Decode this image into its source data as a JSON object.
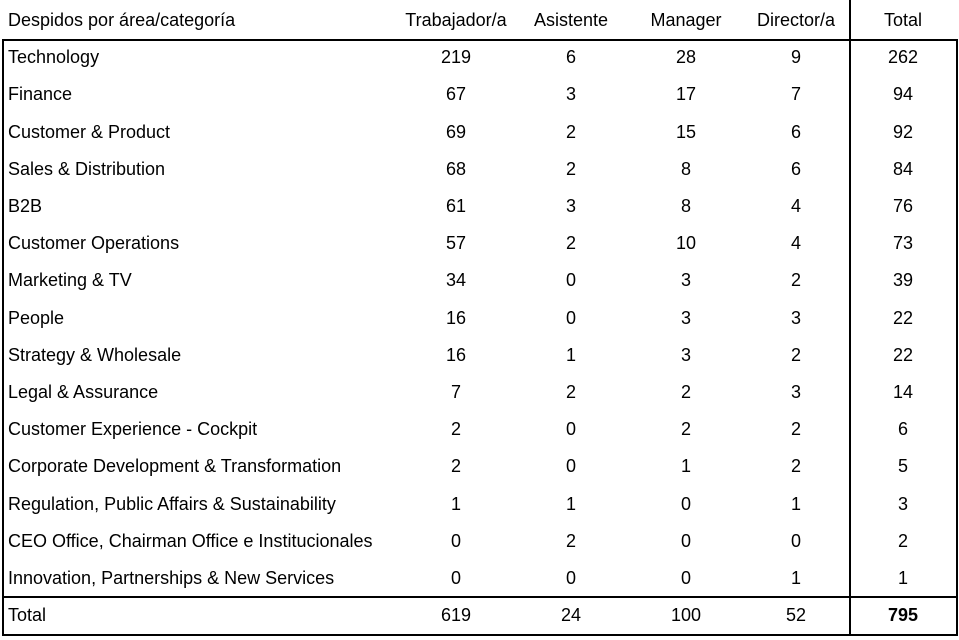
{
  "table": {
    "header": {
      "category": "Despidos por área/categoría",
      "columns": [
        "Trabajador/a",
        "Asistente",
        "Manager",
        "Director/a",
        "Total"
      ]
    },
    "rows": [
      {
        "area": "Technology",
        "values": [
          219,
          6,
          28,
          9
        ],
        "total": 262
      },
      {
        "area": "Finance",
        "values": [
          67,
          3,
          17,
          7
        ],
        "total": 94
      },
      {
        "area": "Customer & Product",
        "values": [
          69,
          2,
          15,
          6
        ],
        "total": 92
      },
      {
        "area": "Sales & Distribution",
        "values": [
          68,
          2,
          8,
          6
        ],
        "total": 84
      },
      {
        "area": "B2B",
        "values": [
          61,
          3,
          8,
          4
        ],
        "total": 76
      },
      {
        "area": "Customer Operations",
        "values": [
          57,
          2,
          10,
          4
        ],
        "total": 73
      },
      {
        "area": "Marketing & TV",
        "values": [
          34,
          0,
          3,
          2
        ],
        "total": 39
      },
      {
        "area": "People",
        "values": [
          16,
          0,
          3,
          3
        ],
        "total": 22
      },
      {
        "area": "Strategy & Wholesale",
        "values": [
          16,
          1,
          3,
          2
        ],
        "total": 22
      },
      {
        "area": "Legal & Assurance",
        "values": [
          7,
          2,
          2,
          3
        ],
        "total": 14
      },
      {
        "area": "Customer Experience - Cockpit",
        "values": [
          2,
          0,
          2,
          2
        ],
        "total": 6
      },
      {
        "area": "Corporate Development & Transformation",
        "values": [
          2,
          0,
          1,
          2
        ],
        "total": 5
      },
      {
        "area": "Regulation, Public Affairs & Sustainability",
        "values": [
          1,
          1,
          0,
          1
        ],
        "total": 3
      },
      {
        "area": "CEO Office, Chairman Office e Institucionales",
        "values": [
          0,
          2,
          0,
          0
        ],
        "total": 2
      },
      {
        "area": "Innovation, Partnerships & New Services",
        "values": [
          0,
          0,
          0,
          1
        ],
        "total": 1
      }
    ],
    "footer": {
      "label": "Total",
      "values": [
        619,
        24,
        100,
        52
      ],
      "total": 795
    }
  }
}
